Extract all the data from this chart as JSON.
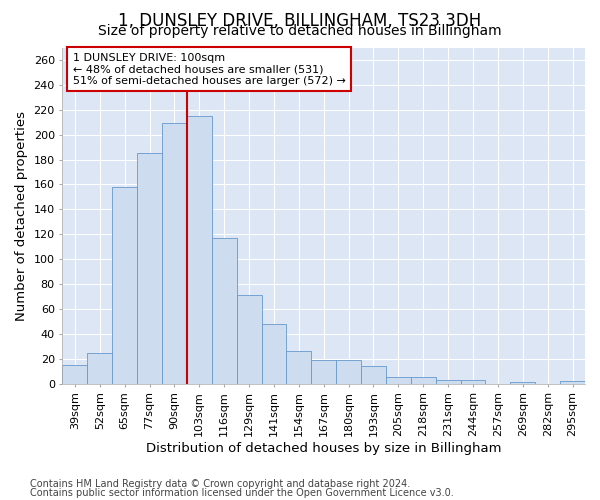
{
  "title": "1, DUNSLEY DRIVE, BILLINGHAM, TS23 3DH",
  "subtitle": "Size of property relative to detached houses in Billingham",
  "xlabel": "Distribution of detached houses by size in Billingham",
  "ylabel": "Number of detached properties",
  "categories": [
    "39sqm",
    "52sqm",
    "65sqm",
    "77sqm",
    "90sqm",
    "103sqm",
    "116sqm",
    "129sqm",
    "141sqm",
    "154sqm",
    "167sqm",
    "180sqm",
    "193sqm",
    "205sqm",
    "218sqm",
    "231sqm",
    "244sqm",
    "257sqm",
    "269sqm",
    "282sqm",
    "295sqm"
  ],
  "values": [
    15,
    25,
    158,
    185,
    209,
    215,
    117,
    71,
    48,
    26,
    19,
    19,
    14,
    5,
    5,
    3,
    3,
    0,
    1,
    0,
    2
  ],
  "bar_color": "#cddcef",
  "bar_edge_color": "#6699cc",
  "vline_color": "#cc0000",
  "annotation_text": "1 DUNSLEY DRIVE: 100sqm\n← 48% of detached houses are smaller (531)\n51% of semi-detached houses are larger (572) →",
  "annotation_box_color": "#ffffff",
  "annotation_box_edge_color": "#cc0000",
  "footer1": "Contains HM Land Registry data © Crown copyright and database right 2024.",
  "footer2": "Contains public sector information licensed under the Open Government Licence v3.0.",
  "ylim": [
    0,
    270
  ],
  "yticks": [
    0,
    20,
    40,
    60,
    80,
    100,
    120,
    140,
    160,
    180,
    200,
    220,
    240,
    260
  ],
  "fig_background": "#ffffff",
  "plot_background": "#dce6f5",
  "grid_color": "#ffffff",
  "title_fontsize": 12,
  "subtitle_fontsize": 10,
  "tick_fontsize": 8,
  "label_fontsize": 9.5,
  "annotation_fontsize": 8,
  "footer_fontsize": 7
}
